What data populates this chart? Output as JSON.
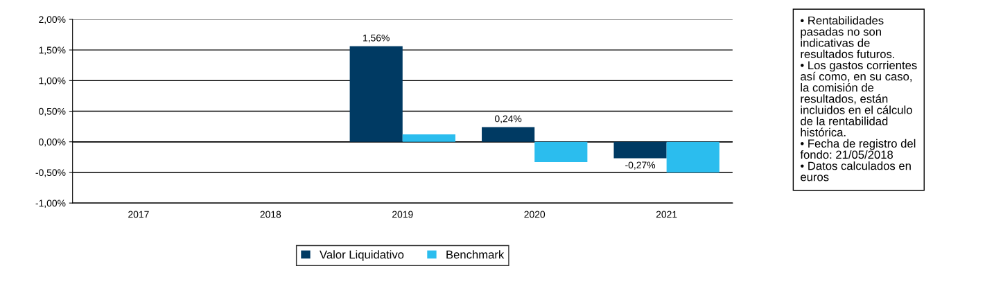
{
  "chart_data": {
    "type": "bar",
    "categories": [
      "2017",
      "2018",
      "2019",
      "2020",
      "2021"
    ],
    "series": [
      {
        "name": "Valor Liquidativo",
        "color": "#003a63",
        "values": [
          null,
          null,
          1.56,
          0.24,
          -0.27
        ],
        "value_labels": [
          null,
          null,
          "1,56%",
          "0,24%",
          "-0,27%"
        ]
      },
      {
        "name": "Benchmark",
        "color": "#2bbdee",
        "values": [
          null,
          null,
          0.12,
          -0.33,
          -0.5
        ]
      }
    ],
    "ylim": [
      -1,
      2
    ],
    "yticks": [
      {
        "value": -1,
        "label": "-1,00%"
      },
      {
        "value": -0.5,
        "label": "-0,50%"
      },
      {
        "value": 0,
        "label": "0,00%"
      },
      {
        "value": 0.5,
        "label": "0,50%"
      },
      {
        "value": 1,
        "label": "1,00%"
      },
      {
        "value": 1.5,
        "label": "1,50%"
      },
      {
        "value": 2,
        "label": "2,00%"
      }
    ],
    "grid": "y",
    "legend": "bottom",
    "annotations": [
      "• Rentabilidades\npasadas no son\nindicativas de\nresultados futuros.\n• Los gastos corrientes\nasí como, en su caso,\nla comisión de\nresultados, están\nincluidos en el cálculo\nde la rentabilidad\nhistórica.\n• Fecha de registro del\nfondo: 21/05/2018\n• Datos calculados en\neuros"
    ]
  }
}
